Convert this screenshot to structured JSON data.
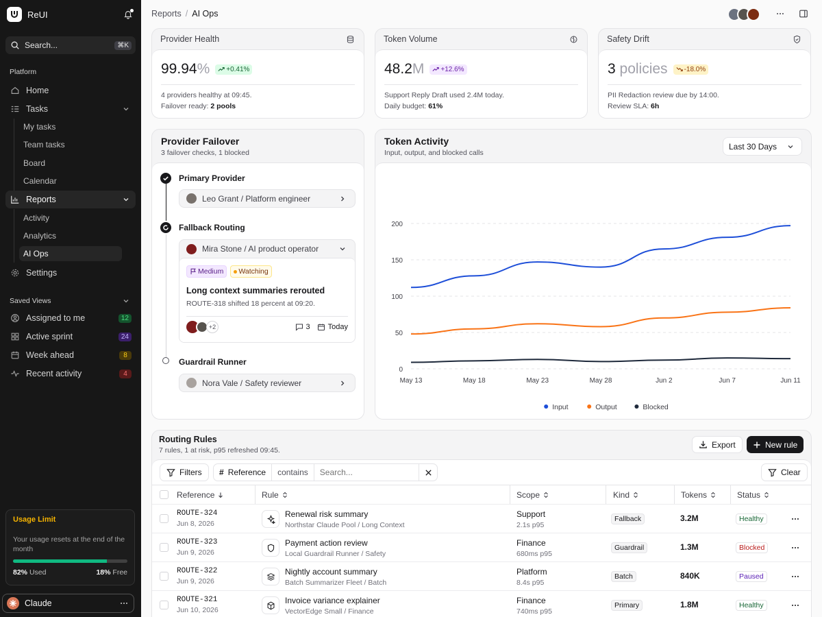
{
  "sidebar": {
    "brand": "ReUI",
    "search": {
      "placeholder": "Search...",
      "shortcut": "⌘K"
    },
    "platform_label": "Platform",
    "nav": {
      "home": "Home",
      "tasks": "Tasks",
      "reports": "Reports",
      "settings": "Settings"
    },
    "tasks_sub": [
      "My tasks",
      "Team tasks",
      "Board",
      "Calendar"
    ],
    "reports_sub": [
      "Activity",
      "Analytics",
      "AI Ops"
    ],
    "saved_label": "Saved Views",
    "saved": [
      {
        "label": "Assigned to me",
        "count": "12",
        "color": "#22c55e"
      },
      {
        "label": "Active sprint",
        "count": "24",
        "color": "#8b5cf6"
      },
      {
        "label": "Week ahead",
        "count": "8",
        "color": "#eab308"
      },
      {
        "label": "Recent activity",
        "count": "4",
        "color": "#ef4444"
      }
    ],
    "usage": {
      "title": "Usage Limit",
      "text": "Your usage resets at the end of the month",
      "used_pct": "82%",
      "used_label": "Used",
      "free_pct": "18%",
      "free_label": "Free",
      "used_fraction": 0.82
    },
    "user": "Claude"
  },
  "header": {
    "crumb_parent": "Reports",
    "crumb_current": "AI Ops"
  },
  "kpis": [
    {
      "title": "Provider Health",
      "value": "99.94",
      "unit": "%",
      "delta": "+0.41%",
      "line1": "4 providers healthy at 09:45.",
      "line2_pre": "Failover ready: ",
      "line2_bold": "2 pools",
      "delta_bg": "#dcfce7",
      "delta_fg": "#166534"
    },
    {
      "title": "Token Volume",
      "value": "48.2",
      "unit": "M",
      "delta": "+12.6%",
      "line1": "Support Reply Draft used 2.4M today.",
      "line2_pre": "Daily budget: ",
      "line2_bold": "61%",
      "delta_bg": "#f3e8ff",
      "delta_fg": "#6b21a8"
    },
    {
      "title": "Safety Drift",
      "value": "3",
      "unit": " policies",
      "delta": "-18.0%",
      "line1": "PII Redaction review due by 14:00.",
      "line2_pre": "Review SLA: ",
      "line2_bold": "6h",
      "delta_bg": "#fef3c7",
      "delta_fg": "#92400e"
    }
  ],
  "failover": {
    "title": "Provider Failover",
    "subtitle": "3 failover checks, 1 blocked",
    "steps": [
      {
        "title": "Primary Provider",
        "person": "Leo Grant / Platform engineer"
      },
      {
        "title": "Fallback Routing",
        "person": "Mira Stone / AI product operator"
      },
      {
        "title": "Guardrail Runner",
        "person": "Nora Vale / Safety reviewer"
      }
    ],
    "detail": {
      "priority": "Medium",
      "state": "Watching",
      "title": "Long context summaries rerouted",
      "desc": "ROUTE-318 shifted 18 percent at 09:20.",
      "more": "+2",
      "comments": "3",
      "due": "Today"
    }
  },
  "activity": {
    "title": "Token Activity",
    "subtitle": "Input, output, and blocked calls",
    "range": "Last 30 Days"
  },
  "chart_data": {
    "type": "line",
    "x": [
      "May 13",
      "May 18",
      "May 23",
      "May 28",
      "Jun 2",
      "Jun 7",
      "Jun 11"
    ],
    "yticks": [
      0,
      50,
      100,
      150,
      200
    ],
    "ylim": [
      0,
      200
    ],
    "grid": true,
    "legend_position": "bottom-center",
    "series": [
      {
        "name": "Input",
        "color": "#1d4ed8",
        "values": [
          112,
          128,
          147,
          140,
          165,
          181,
          197
        ]
      },
      {
        "name": "Output",
        "color": "#f97316",
        "values": [
          48,
          55,
          62,
          58,
          70,
          78,
          84
        ]
      },
      {
        "name": "Blocked",
        "color": "#1e293b",
        "values": [
          9,
          11,
          13,
          10,
          12,
          15,
          14
        ]
      }
    ]
  },
  "rules": {
    "title": "Routing Rules",
    "subtitle": "7 rules, 1 at risk, p95 refreshed 09:45.",
    "export": "Export",
    "new_rule": "New rule",
    "filters": "Filters",
    "filter_field": "Reference",
    "filter_op": "contains",
    "filter_placeholder": "Search...",
    "clear": "Clear",
    "columns": [
      "Reference",
      "Rule",
      "Scope",
      "Kind",
      "Tokens",
      "Status"
    ],
    "rows": [
      {
        "ref": "ROUTE-324",
        "date": "Jun 8, 2026",
        "rule": "Renewal risk summary",
        "rule_sub": "Northstar Claude Pool / Long Context",
        "scope": "Support",
        "scope_sub": "2.1s p95",
        "kind": "Fallback",
        "tokens": "3.2M",
        "status": "Healthy",
        "status_color": "#166534"
      },
      {
        "ref": "ROUTE-323",
        "date": "Jun 9, 2026",
        "rule": "Payment action review",
        "rule_sub": "Local Guardrail Runner / Safety",
        "scope": "Finance",
        "scope_sub": "680ms p95",
        "kind": "Guardrail",
        "tokens": "1.3M",
        "status": "Blocked",
        "status_color": "#b91c1c"
      },
      {
        "ref": "ROUTE-322",
        "date": "Jun 9, 2026",
        "rule": "Nightly account summary",
        "rule_sub": "Batch Summarizer Fleet / Batch",
        "scope": "Platform",
        "scope_sub": "8.4s p95",
        "kind": "Batch",
        "tokens": "840K",
        "status": "Paused",
        "status_color": "#5b21b6"
      },
      {
        "ref": "ROUTE-321",
        "date": "Jun 10, 2026",
        "rule": "Invoice variance explainer",
        "rule_sub": "VectorEdge Small / Finance",
        "scope": "Finance",
        "scope_sub": "740ms p95",
        "kind": "Primary",
        "tokens": "1.8M",
        "status": "Healthy",
        "status_color": "#166534"
      }
    ]
  }
}
